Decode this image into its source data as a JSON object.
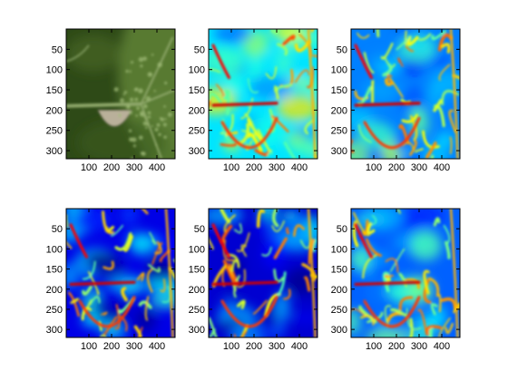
{
  "figure": {
    "background": "#ffffff",
    "layout": "2 rows x 3 columns"
  },
  "chart_data": [
    {
      "type": "heatmap",
      "panel": "top-left",
      "content": "photograph (plant stem with caterpillar on dark green background)",
      "image_kind": "photo",
      "xlim": [
        0,
        480
      ],
      "ylim": [
        0,
        320
      ],
      "x_ticks": [
        100,
        200,
        300,
        400
      ],
      "y_ticks": [
        50,
        100,
        150,
        200,
        250,
        300
      ],
      "x_tick_labels": [
        "100",
        "200",
        "300",
        "400"
      ],
      "y_tick_labels": [
        "50",
        "100",
        "150",
        "200",
        "250",
        "300"
      ],
      "colormap": "none",
      "grid": false,
      "colors": {
        "bg": "#2e4a17",
        "stem": "#8fa86a",
        "caterpillar": "#b9b09a",
        "foliage": "#5d7f35"
      }
    },
    {
      "type": "heatmap",
      "panel": "top-center",
      "content": "edge/saliency magnitude map",
      "image_kind": "jet",
      "xlim": [
        0,
        480
      ],
      "ylim": [
        0,
        320
      ],
      "x_ticks": [
        100,
        200,
        300,
        400
      ],
      "y_ticks": [
        50,
        100,
        150,
        200,
        250,
        300
      ],
      "x_tick_labels": [
        "100",
        "200",
        "300",
        "400"
      ],
      "y_tick_labels": [
        "50",
        "100",
        "150",
        "200",
        "250",
        "300"
      ],
      "colormap": "jet",
      "base_level": 0.35,
      "grid": false
    },
    {
      "type": "heatmap",
      "panel": "top-right",
      "content": "edge/saliency magnitude map",
      "image_kind": "jet",
      "xlim": [
        0,
        480
      ],
      "ylim": [
        0,
        320
      ],
      "x_ticks": [
        100,
        200,
        300,
        400
      ],
      "y_ticks": [
        50,
        100,
        150,
        200,
        250,
        300
      ],
      "x_tick_labels": [
        "100",
        "200",
        "300",
        "400"
      ],
      "y_tick_labels": [
        "50",
        "100",
        "150",
        "200",
        "250",
        "300"
      ],
      "colormap": "jet",
      "base_level": 0.25,
      "grid": false
    },
    {
      "type": "heatmap",
      "panel": "bottom-left",
      "content": "edge/saliency magnitude map",
      "image_kind": "jet",
      "xlim": [
        0,
        480
      ],
      "ylim": [
        0,
        320
      ],
      "x_ticks": [
        100,
        200,
        300,
        400
      ],
      "y_ticks": [
        50,
        100,
        150,
        200,
        250,
        300
      ],
      "x_tick_labels": [
        "100",
        "200",
        "300",
        "400"
      ],
      "y_tick_labels": [
        "50",
        "100",
        "150",
        "200",
        "250",
        "300"
      ],
      "colormap": "jet",
      "base_level": 0.1,
      "grid": false
    },
    {
      "type": "heatmap",
      "panel": "bottom-center",
      "content": "edge/saliency magnitude map",
      "image_kind": "jet",
      "xlim": [
        0,
        480
      ],
      "ylim": [
        0,
        320
      ],
      "x_ticks": [
        100,
        200,
        300,
        400
      ],
      "y_ticks": [
        50,
        100,
        150,
        200,
        250,
        300
      ],
      "x_tick_labels": [
        "100",
        "200",
        "300",
        "400"
      ],
      "y_tick_labels": [
        "50",
        "100",
        "150",
        "200",
        "250",
        "300"
      ],
      "colormap": "jet",
      "base_level": 0.08,
      "grid": false
    },
    {
      "type": "heatmap",
      "panel": "bottom-right",
      "content": "edge/saliency magnitude map",
      "image_kind": "jet",
      "xlim": [
        0,
        480
      ],
      "ylim": [
        0,
        320
      ],
      "x_ticks": [
        100,
        200,
        300,
        400
      ],
      "y_ticks": [
        50,
        100,
        150,
        200,
        250,
        300
      ],
      "x_tick_labels": [
        "100",
        "200",
        "300",
        "400"
      ],
      "y_tick_labels": [
        "50",
        "100",
        "150",
        "200",
        "250",
        "300"
      ],
      "colormap": "jet",
      "base_level": 0.22,
      "grid": false
    }
  ]
}
